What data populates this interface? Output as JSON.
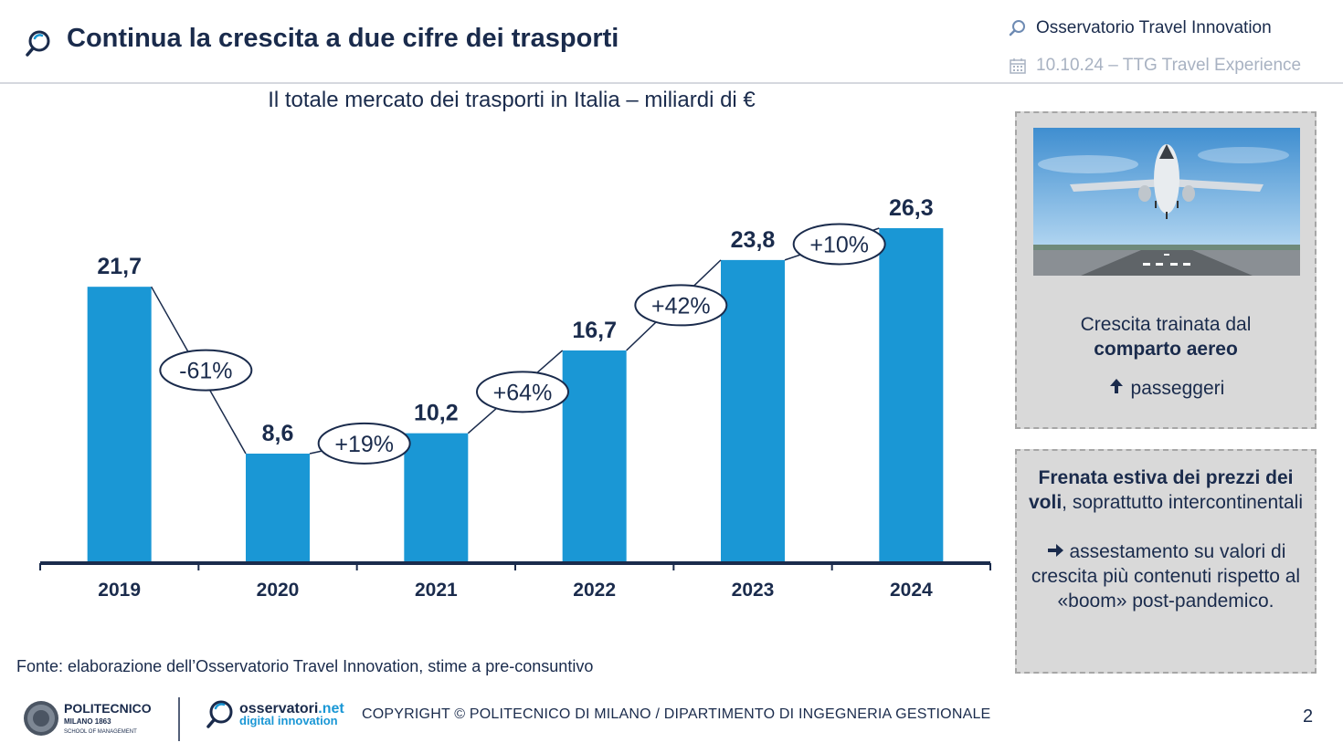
{
  "header": {
    "title": "Continua la crescita a due cifre dei trasporti",
    "observatory": "Osservatorio Travel Innovation",
    "event": "10.10.24 – TTG Travel Experience"
  },
  "chart_data": {
    "type": "bar",
    "title": "Il totale mercato dei trasporti in Italia – miliardi di €",
    "categories": [
      "2019",
      "2020",
      "2021",
      "2022",
      "2023",
      "2024"
    ],
    "values": [
      21.7,
      8.6,
      10.2,
      16.7,
      23.8,
      26.3
    ],
    "value_labels": [
      "21,7",
      "8,6",
      "10,2",
      "16,7",
      "23,8",
      "26,3"
    ],
    "growth_labels": [
      "-61%",
      "+19%",
      "+64%",
      "+42%",
      "+10%"
    ],
    "bar_color": "#1a97d5",
    "axis_color": "#1a2b4c",
    "ylim": [
      0,
      26.3
    ]
  },
  "side": {
    "box1": {
      "image_name": "airplane-runway-photo",
      "line1": "Crescita trainata dal",
      "line2_bold": "comparto aereo",
      "line3_icon": "up-arrow-icon",
      "line3": "passeggeri"
    },
    "box2": {
      "bold": "Frenata estiva dei prezzi dei voli",
      "rest": ", soprattutto intercontinentali",
      "arrow_icon": "right-arrow-icon",
      "second": "assestamento su valori di crescita più contenuti rispetto al «boom» post-pandemico."
    }
  },
  "source": "Fonte: elaborazione dell’Osservatorio Travel Innovation, stime a pre-consuntivo",
  "footer": {
    "polimi_name": "POLITECNICO",
    "polimi_sub1": "MILANO 1863",
    "polimi_sub2": "SCHOOL OF MANAGEMENT",
    "osservatori_name": "osservatori",
    "osservatori_tld": ".net",
    "osservatori_sub": "digital innovation",
    "copyright": "COPYRIGHT © POLITECNICO DI MILANO / DIPARTIMENTO DI INGEGNERIA GESTIONALE",
    "page": "2"
  }
}
